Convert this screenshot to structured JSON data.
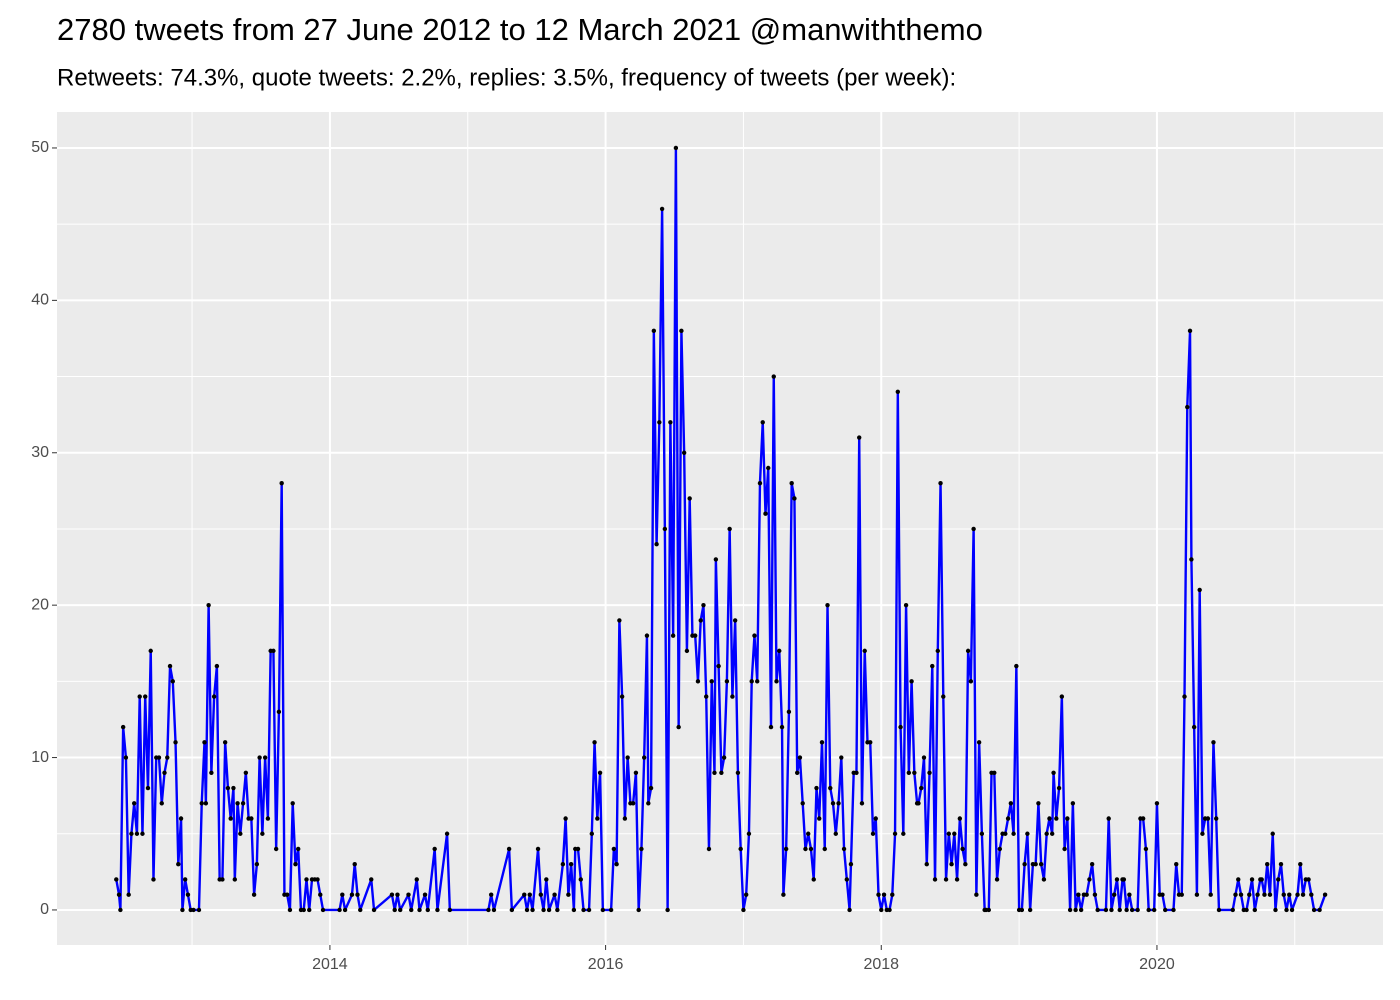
{
  "chart_data": {
    "type": "line",
    "title": "2780 tweets from 27 June 2012 to 12 March 2021 @manwiththemo",
    "subtitle": "Retweets: 74.3%, quote tweets: 2.2%, replies: 3.5%, frequency of tweets (per week):",
    "color": "#0000ff",
    "marker_color": "#000000",
    "grid": true,
    "xlim": [
      2012.02,
      2021.64
    ],
    "xticks": [
      2014,
      2016,
      2018,
      2020
    ],
    "ylim": [
      -2.3,
      52.36
    ],
    "yticks": [
      0,
      10,
      20,
      30,
      40,
      50
    ],
    "x": [
      2012.45,
      2012.47,
      2012.48,
      2012.5,
      2012.52,
      2012.54,
      2012.56,
      2012.58,
      2012.6,
      2012.62,
      2012.64,
      2012.66,
      2012.68,
      2012.7,
      2012.72,
      2012.74,
      2012.76,
      2012.78,
      2012.8,
      2012.82,
      2012.84,
      2012.86,
      2012.88,
      2012.9,
      2012.92,
      2012.93,
      2012.95,
      2012.97,
      2012.99,
      2013.01,
      2013.05,
      2013.07,
      2013.09,
      2013.1,
      2013.12,
      2013.14,
      2013.16,
      2013.18,
      2013.2,
      2013.22,
      2013.24,
      2013.26,
      2013.28,
      2013.3,
      2013.31,
      2013.33,
      2013.35,
      2013.37,
      2013.39,
      2013.41,
      2013.43,
      2013.45,
      2013.47,
      2013.49,
      2013.51,
      2013.53,
      2013.55,
      2013.57,
      2013.59,
      2013.61,
      2013.63,
      2013.65,
      2013.67,
      2013.69,
      2013.71,
      2013.73,
      2013.75,
      2013.77,
      2013.79,
      2013.81,
      2013.83,
      2013.85,
      2013.87,
      2013.89,
      2013.91,
      2013.93,
      2013.95,
      2014.07,
      2014.09,
      2014.11,
      2014.16,
      2014.18,
      2014.2,
      2014.22,
      2014.3,
      2014.32,
      2014.45,
      2014.47,
      2014.49,
      2014.51,
      2014.57,
      2014.59,
      2014.63,
      2014.65,
      2014.69,
      2014.71,
      2014.76,
      2014.78,
      2014.85,
      2014.87,
      2015.15,
      2015.17,
      2015.19,
      2015.3,
      2015.32,
      2015.41,
      2015.43,
      2015.45,
      2015.47,
      2015.51,
      2015.53,
      2015.55,
      2015.57,
      2015.59,
      2015.63,
      2015.65,
      2015.69,
      2015.71,
      2015.73,
      2015.75,
      2015.77,
      2015.78,
      2015.8,
      2015.82,
      2015.84,
      2015.88,
      2015.9,
      2015.92,
      2015.94,
      2015.96,
      2015.98,
      2016.04,
      2016.06,
      2016.08,
      2016.1,
      2016.12,
      2016.14,
      2016.16,
      2016.18,
      2016.2,
      2016.22,
      2016.24,
      2016.26,
      2016.28,
      2016.3,
      2016.31,
      2016.33,
      2016.35,
      2016.37,
      2016.39,
      2016.41,
      2016.43,
      2016.45,
      2016.47,
      2016.49,
      2016.51,
      2016.53,
      2016.55,
      2016.57,
      2016.59,
      2016.61,
      2016.63,
      2016.65,
      2016.67,
      2016.69,
      2016.71,
      2016.73,
      2016.75,
      2016.77,
      2016.79,
      2016.8,
      2016.82,
      2016.84,
      2016.86,
      2016.88,
      2016.9,
      2016.92,
      2016.94,
      2016.96,
      2016.98,
      2017.0,
      2017.02,
      2017.04,
      2017.06,
      2017.08,
      2017.1,
      2017.12,
      2017.14,
      2017.16,
      2017.18,
      2017.2,
      2017.22,
      2017.24,
      2017.26,
      2017.28,
      2017.29,
      2017.31,
      2017.33,
      2017.35,
      2017.37,
      2017.39,
      2017.41,
      2017.43,
      2017.45,
      2017.47,
      2017.49,
      2017.51,
      2017.53,
      2017.55,
      2017.57,
      2017.59,
      2017.61,
      2017.63,
      2017.65,
      2017.67,
      2017.69,
      2017.71,
      2017.73,
      2017.75,
      2017.77,
      2017.78,
      2017.8,
      2017.82,
      2017.84,
      2017.86,
      2017.88,
      2017.9,
      2017.92,
      2017.94,
      2017.96,
      2017.98,
      2018.0,
      2018.02,
      2018.04,
      2018.06,
      2018.08,
      2018.1,
      2018.12,
      2018.14,
      2018.16,
      2018.18,
      2018.2,
      2018.22,
      2018.24,
      2018.26,
      2018.27,
      2018.29,
      2018.31,
      2018.33,
      2018.35,
      2018.37,
      2018.39,
      2018.41,
      2018.43,
      2018.45,
      2018.47,
      2018.49,
      2018.51,
      2018.53,
      2018.55,
      2018.57,
      2018.59,
      2018.61,
      2018.63,
      2018.65,
      2018.67,
      2018.69,
      2018.71,
      2018.73,
      2018.75,
      2018.76,
      2018.78,
      2018.8,
      2018.82,
      2018.84,
      2018.86,
      2018.88,
      2018.9,
      2018.92,
      2018.94,
      2018.96,
      2018.98,
      2019.0,
      2019.02,
      2019.04,
      2019.06,
      2019.08,
      2019.1,
      2019.12,
      2019.14,
      2019.16,
      2019.18,
      2019.2,
      2019.22,
      2019.24,
      2019.25,
      2019.27,
      2019.29,
      2019.31,
      2019.33,
      2019.35,
      2019.37,
      2019.39,
      2019.41,
      2019.43,
      2019.45,
      2019.47,
      2019.49,
      2019.51,
      2019.53,
      2019.55,
      2019.57,
      2019.63,
      2019.65,
      2019.67,
      2019.69,
      2019.71,
      2019.73,
      2019.75,
      2019.76,
      2019.78,
      2019.8,
      2019.82,
      2019.86,
      2019.88,
      2019.9,
      2019.92,
      2019.94,
      2019.98,
      2020.0,
      2020.02,
      2020.04,
      2020.06,
      2020.12,
      2020.14,
      2020.16,
      2020.18,
      2020.2,
      2020.22,
      2020.24,
      2020.25,
      2020.27,
      2020.29,
      2020.31,
      2020.33,
      2020.35,
      2020.37,
      2020.39,
      2020.41,
      2020.43,
      2020.45,
      2020.55,
      2020.57,
      2020.59,
      2020.61,
      2020.63,
      2020.65,
      2020.67,
      2020.69,
      2020.71,
      2020.73,
      2020.75,
      2020.76,
      2020.78,
      2020.8,
      2020.82,
      2020.84,
      2020.86,
      2020.88,
      2020.9,
      2020.92,
      2020.94,
      2020.96,
      2020.98,
      2021.02,
      2021.04,
      2021.06,
      2021.08,
      2021.1,
      2021.12,
      2021.14,
      2021.18,
      2021.22
    ],
    "values": [
      2,
      1,
      0,
      12,
      10,
      1,
      5,
      7,
      5,
      14,
      5,
      14,
      8,
      17,
      2,
      10,
      10,
      7,
      9,
      10,
      16,
      15,
      11,
      3,
      6,
      0,
      2,
      1,
      0,
      0,
      0,
      7,
      11,
      7,
      20,
      9,
      14,
      16,
      2,
      2,
      11,
      8,
      6,
      8,
      2,
      7,
      5,
      7,
      9,
      6,
      6,
      1,
      3,
      10,
      5,
      10,
      6,
      17,
      17,
      4,
      13,
      28,
      1,
      1,
      0,
      7,
      3,
      4,
      0,
      0,
      2,
      0,
      2,
      2,
      2,
      1,
      0,
      0,
      1,
      0,
      1,
      3,
      1,
      0,
      2,
      0,
      1,
      0,
      1,
      0,
      1,
      0,
      2,
      0,
      1,
      0,
      4,
      0,
      5,
      0,
      0,
      1,
      0,
      4,
      0,
      1,
      0,
      1,
      0,
      4,
      1,
      0,
      2,
      0,
      1,
      0,
      3,
      6,
      1,
      3,
      0,
      4,
      4,
      2,
      0,
      0,
      5,
      11,
      6,
      9,
      0,
      0,
      4,
      3,
      19,
      14,
      6,
      10,
      7,
      7,
      9,
      0,
      4,
      10,
      18,
      7,
      8,
      38,
      24,
      32,
      46,
      25,
      0,
      32,
      18,
      50,
      12,
      38,
      30,
      17,
      27,
      18,
      18,
      15,
      19,
      20,
      14,
      4,
      15,
      9,
      23,
      16,
      9,
      10,
      15,
      25,
      14,
      19,
      9,
      4,
      0,
      1,
      5,
      15,
      18,
      15,
      28,
      32,
      26,
      29,
      12,
      35,
      15,
      17,
      12,
      1,
      4,
      13,
      28,
      27,
      9,
      10,
      7,
      4,
      5,
      4,
      2,
      8,
      6,
      11,
      4,
      20,
      8,
      7,
      5,
      7,
      10,
      4,
      2,
      0,
      3,
      9,
      9,
      31,
      7,
      17,
      11,
      11,
      5,
      6,
      1,
      0,
      1,
      0,
      0,
      1,
      5,
      34,
      12,
      5,
      20,
      9,
      15,
      9,
      7,
      7,
      8,
      10,
      3,
      9,
      16,
      2,
      17,
      28,
      14,
      2,
      5,
      3,
      5,
      2,
      6,
      4,
      3,
      17,
      15,
      25,
      1,
      11,
      5,
      0,
      0,
      0,
      9,
      9,
      2,
      4,
      5,
      5,
      6,
      7,
      5,
      16,
      0,
      0,
      3,
      5,
      0,
      3,
      3,
      7,
      3,
      2,
      5,
      6,
      5,
      9,
      6,
      8,
      14,
      4,
      6,
      0,
      7,
      0,
      1,
      0,
      1,
      1,
      2,
      3,
      1,
      0,
      0,
      6,
      0,
      1,
      2,
      0,
      2,
      2,
      0,
      1,
      0,
      0,
      6,
      6,
      4,
      0,
      0,
      7,
      1,
      1,
      0,
      0,
      3,
      1,
      1,
      14,
      33,
      38,
      23,
      12,
      1,
      21,
      5,
      6,
      6,
      1,
      11,
      6,
      0,
      0,
      1,
      2,
      1,
      0,
      0,
      1,
      2,
      0,
      1,
      2,
      2,
      1,
      3,
      1,
      5,
      0,
      2,
      3,
      1,
      0,
      1,
      0,
      1,
      3,
      1,
      2,
      2,
      1,
      0,
      0,
      1
    ]
  }
}
